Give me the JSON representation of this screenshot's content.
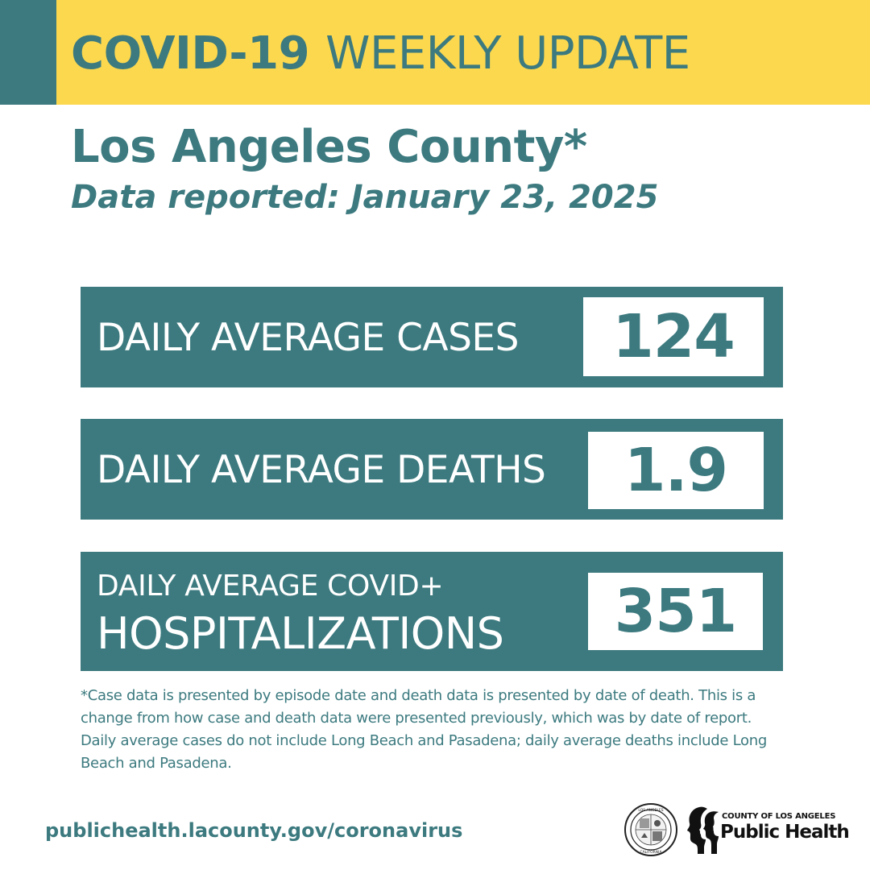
{
  "header": {
    "title_bold": "COVID-19",
    "title_rest": "WEEKLY UPDATE"
  },
  "subheader": {
    "county": "Los Angeles County*",
    "date_line": "Data reported: January 23, 2025"
  },
  "stats": {
    "cases": {
      "label": "DAILY AVERAGE CASES",
      "value": "124"
    },
    "deaths": {
      "label": "DAILY AVERAGE DEATHS",
      "value": "1.9"
    },
    "hospitalizations": {
      "label_line1": "DAILY AVERAGE COVID+",
      "label_line2": "HOSPITALIZATIONS",
      "value": "351"
    }
  },
  "footnote": "*Case data is presented by episode date and death data is presented by date of death. This is a change from how case and death data were presented previously, which was by date of report. Daily average cases do not include Long Beach and Pasadena; daily average deaths include Long Beach and Pasadena.",
  "footer": {
    "url": "publichealth.lacounty.gov/coronavirus",
    "logo_small": "COUNTY OF LOS ANGELES",
    "logo_big": "Public Health",
    "seal_text": "COUNTY OF LOS ANGELES · CALIFORNIA"
  },
  "colors": {
    "teal": "#3c7a7f",
    "yellow": "#fcd84f",
    "white": "#ffffff"
  },
  "icons": {
    "seal": "county-seal-icon",
    "logo_mark": "public-health-profiles-icon"
  }
}
